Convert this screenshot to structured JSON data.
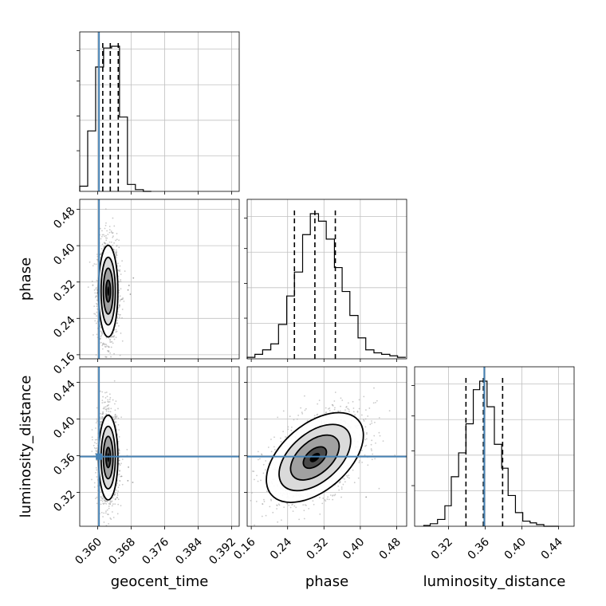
{
  "chart_data": {
    "type": "corner",
    "parameters": [
      "geocent_time",
      "phase",
      "luminosity_distance"
    ],
    "truths": {
      "geocent_time": 0.3603,
      "luminosity_distance": 0.359
    },
    "colors": {
      "truth": "#4682b4",
      "hist": "#000000",
      "grid": "#c0c0c0",
      "points": "#9e9e9e"
    },
    "grid": true,
    "axes": {
      "geocent_time": {
        "lim": [
          0.3557,
          0.3938
        ],
        "ticks": [
          "0.360",
          "0.368",
          "0.376",
          "0.384",
          "0.392"
        ]
      },
      "phase": {
        "lim": [
          0.151,
          0.502
        ],
        "ticks": [
          "0.16",
          "0.24",
          "0.32",
          "0.40",
          "0.48"
        ]
      },
      "luminosity_distance": {
        "lim": [
          0.283,
          0.457
        ],
        "ticks": [
          "0.32",
          "0.36",
          "0.40",
          "0.44"
        ]
      }
    },
    "histograms": {
      "geocent_time": {
        "edges": [
          0.3557,
          0.3576,
          0.3595,
          0.3614,
          0.3633,
          0.3652,
          0.3671,
          0.369,
          0.3709,
          0.3728
        ],
        "counts": [
          3,
          35,
          72,
          83,
          84,
          43,
          4,
          1,
          0
        ],
        "quantiles": [
          0.3612,
          0.363,
          0.3649
        ]
      },
      "phase": {
        "edges": [
          0.151,
          0.168,
          0.185,
          0.203,
          0.22,
          0.238,
          0.255,
          0.273,
          0.29,
          0.308,
          0.325,
          0.343,
          0.36,
          0.377,
          0.395,
          0.412,
          0.43,
          0.447,
          0.465,
          0.482,
          0.5
        ],
        "counts": [
          1,
          3,
          6,
          10,
          23,
          42,
          58,
          83,
          97,
          92,
          80,
          61,
          45,
          29,
          14,
          6,
          4,
          3,
          2,
          1
        ],
        "quantiles": [
          0.255,
          0.3,
          0.345
        ]
      },
      "luminosity_distance": {
        "edges": [
          0.293,
          0.3,
          0.308,
          0.316,
          0.323,
          0.331,
          0.339,
          0.347,
          0.354,
          0.362,
          0.37,
          0.378,
          0.385,
          0.393,
          0.401,
          0.409,
          0.416,
          0.424,
          0.432,
          0.44
        ],
        "counts": [
          0.5,
          1.5,
          4,
          12,
          29,
          43,
          60,
          80,
          85,
          70,
          48,
          34,
          18,
          8,
          3,
          2,
          1,
          0,
          0
        ],
        "quantiles": [
          0.339,
          0.358,
          0.379
        ]
      }
    },
    "scatter": {
      "phase_vs_geocent_time": {
        "mean": [
          0.3625,
          0.3
        ],
        "sd": [
          0.0011,
          0.048
        ],
        "corr": 0.0
      },
      "luminosity_distance_vs_geocent_time": {
        "mean": [
          0.3625,
          0.358
        ],
        "sd": [
          0.0011,
          0.022
        ],
        "corr": 0.0
      },
      "luminosity_distance_vs_phase": {
        "mean": [
          0.3,
          0.358
        ],
        "sd": [
          0.048,
          0.022
        ],
        "corr": 0.5
      }
    }
  }
}
